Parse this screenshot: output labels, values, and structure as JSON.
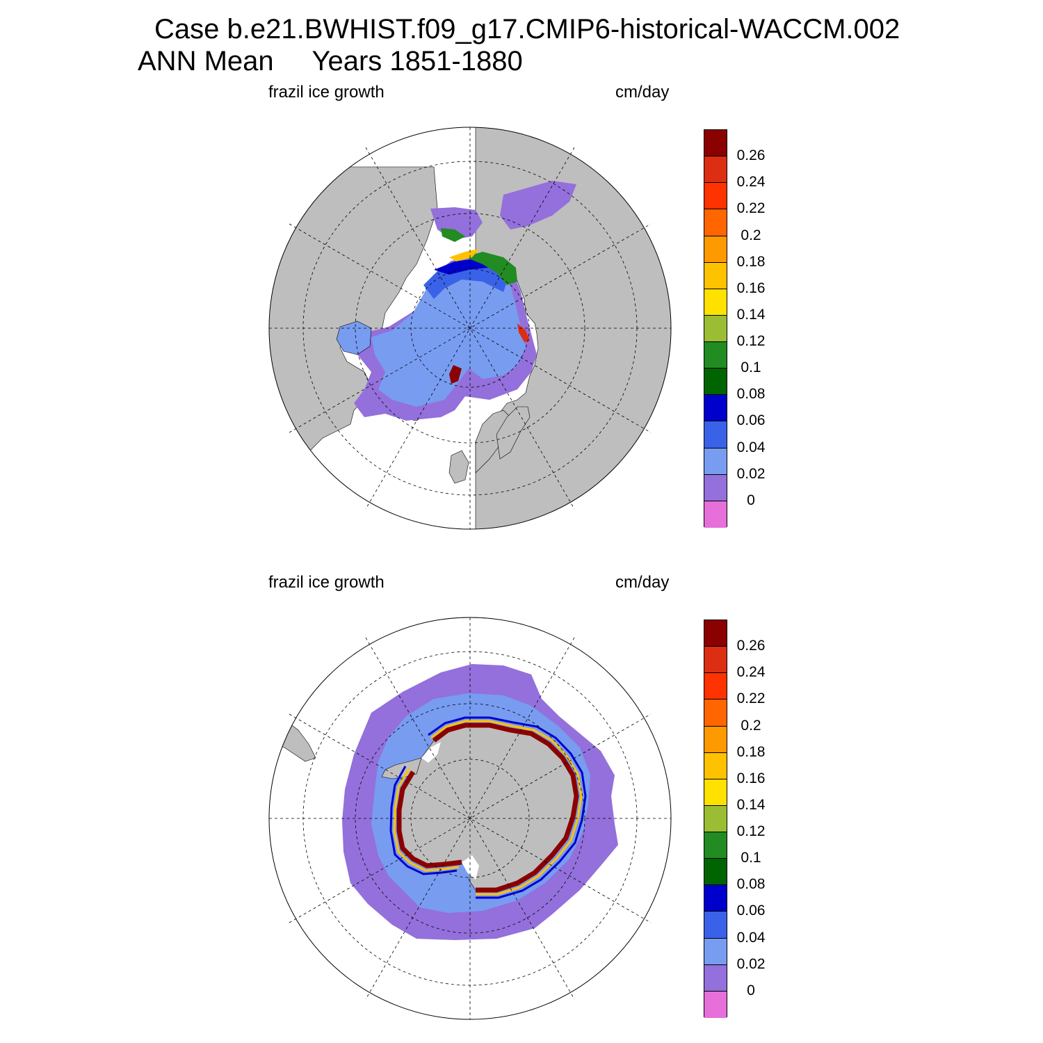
{
  "header": {
    "title_line1": "Case b.e21.BWHIST.f09_g17.CMIP6-historical-WACCM.002",
    "title_line2": "ANN Mean     Years 1851-1880"
  },
  "panels": [
    {
      "id": "north",
      "variable_label": "frazil ice growth",
      "units_label": "cm/day",
      "hemisphere": "north-polar-stereographic"
    },
    {
      "id": "south",
      "variable_label": "frazil ice growth",
      "units_label": "cm/day",
      "hemisphere": "south-polar-stereographic"
    }
  ],
  "colorbar": {
    "tick_labels": [
      "0.26",
      "0.24",
      "0.22",
      "0.2",
      "0.18",
      "0.16",
      "0.14",
      "0.12",
      "0.1",
      "0.08",
      "0.06",
      "0.04",
      "0.02",
      "0"
    ],
    "colors_top_to_bottom": [
      "#8b0000",
      "#dc2e12",
      "#ff3300",
      "#ff6600",
      "#ff9900",
      "#ffc200",
      "#ffe100",
      "#9abd33",
      "#228b22",
      "#006400",
      "#0000cd",
      "#3a62e8",
      "#789cf0",
      "#9370db",
      "#e66fd9"
    ]
  },
  "map_colors": {
    "land": "#bebebe",
    "ocean": "#ffffff",
    "graticule": "#000000"
  }
}
